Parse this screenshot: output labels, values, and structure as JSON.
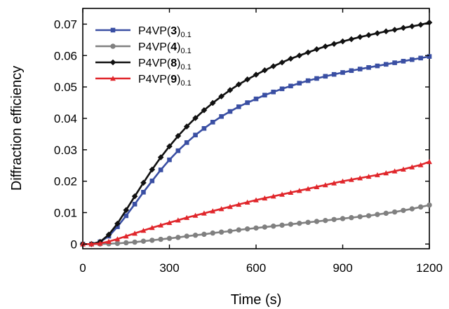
{
  "chart_data": {
    "type": "line",
    "title": "",
    "xlabel": "Time (s)",
    "ylabel": "Diffraction efficiency",
    "xlim": [
      0,
      1200
    ],
    "ylim": [
      -0.0015,
      0.075
    ],
    "xticks": [
      0,
      300,
      600,
      900,
      1200
    ],
    "xtick_labels": [
      "0",
      "300",
      "600",
      "900",
      "1200"
    ],
    "yticks": [
      0,
      0.01,
      0.02,
      0.03,
      0.04,
      0.05,
      0.06,
      0.07
    ],
    "ytick_labels": [
      "0",
      "0.01",
      "0.02",
      "0.03",
      "0.04",
      "0.05",
      "0.06",
      "0.07"
    ],
    "grid": false,
    "legend_position": "top-left",
    "x": [
      0,
      30,
      60,
      90,
      120,
      150,
      180,
      210,
      240,
      270,
      300,
      330,
      360,
      390,
      420,
      450,
      480,
      510,
      540,
      570,
      600,
      630,
      660,
      690,
      720,
      750,
      780,
      810,
      840,
      870,
      900,
      930,
      960,
      990,
      1020,
      1050,
      1080,
      1110,
      1140,
      1170,
      1200
    ],
    "series": [
      {
        "name_main": "P4VP(",
        "name_bold": "3",
        "name_close": ")",
        "name_sub": "0.1",
        "color": "#3a4fa3",
        "marker": "square",
        "values": [
          0,
          0,
          0.0007,
          0.0025,
          0.0055,
          0.009,
          0.0127,
          0.0165,
          0.0201,
          0.0236,
          0.0268,
          0.0297,
          0.0323,
          0.0347,
          0.0368,
          0.0388,
          0.0406,
          0.0422,
          0.0437,
          0.045,
          0.0462,
          0.0474,
          0.0484,
          0.0494,
          0.0503,
          0.0512,
          0.052,
          0.0527,
          0.0534,
          0.054,
          0.0546,
          0.0552,
          0.0557,
          0.0562,
          0.0567,
          0.0572,
          0.0577,
          0.0582,
          0.0587,
          0.0592,
          0.0597
        ]
      },
      {
        "name_main": "P4VP(",
        "name_bold": "4",
        "name_close": ")",
        "name_sub": "0.1",
        "color": "#808080",
        "marker": "circle",
        "values": [
          0,
          0,
          0,
          0.0001,
          0.0002,
          0.0004,
          0.0006,
          0.0009,
          0.0012,
          0.0015,
          0.0018,
          0.0021,
          0.0025,
          0.0028,
          0.0031,
          0.0035,
          0.0038,
          0.0041,
          0.0045,
          0.0048,
          0.0051,
          0.0054,
          0.0057,
          0.006,
          0.0063,
          0.0066,
          0.0069,
          0.0072,
          0.0075,
          0.0078,
          0.0081,
          0.0084,
          0.0087,
          0.009,
          0.0094,
          0.0098,
          0.0102,
          0.0107,
          0.0112,
          0.0118,
          0.0124
        ]
      },
      {
        "name_main": "P4VP(",
        "name_bold": "8",
        "name_close": ")",
        "name_sub": "0.1",
        "color": "#111111",
        "marker": "diamond",
        "values": [
          0,
          0,
          0.0007,
          0.003,
          0.0065,
          0.0108,
          0.0152,
          0.0195,
          0.0237,
          0.0276,
          0.0311,
          0.0344,
          0.0374,
          0.0401,
          0.0426,
          0.0449,
          0.047,
          0.049,
          0.0508,
          0.0524,
          0.0539,
          0.0553,
          0.0566,
          0.0578,
          0.059,
          0.06,
          0.061,
          0.062,
          0.0629,
          0.0637,
          0.0645,
          0.0652,
          0.0659,
          0.0665,
          0.0671,
          0.0677,
          0.0682,
          0.0688,
          0.0693,
          0.0698,
          0.0705
        ]
      },
      {
        "name_main": "P4VP(",
        "name_bold": "9",
        "name_close": ")",
        "name_sub": "0.1",
        "color": "#e0262b",
        "marker": "triangle",
        "values": [
          0,
          0,
          0.0002,
          0.0008,
          0.0016,
          0.0025,
          0.0034,
          0.0043,
          0.0052,
          0.006,
          0.0068,
          0.0076,
          0.0084,
          0.0091,
          0.0098,
          0.0105,
          0.0112,
          0.0119,
          0.0126,
          0.0133,
          0.014,
          0.0146,
          0.0152,
          0.0158,
          0.0164,
          0.017,
          0.0176,
          0.0182,
          0.0188,
          0.0194,
          0.02,
          0.0205,
          0.021,
          0.0215,
          0.022,
          0.0226,
          0.0232,
          0.0238,
          0.0245,
          0.0252,
          0.0262
        ]
      }
    ]
  }
}
